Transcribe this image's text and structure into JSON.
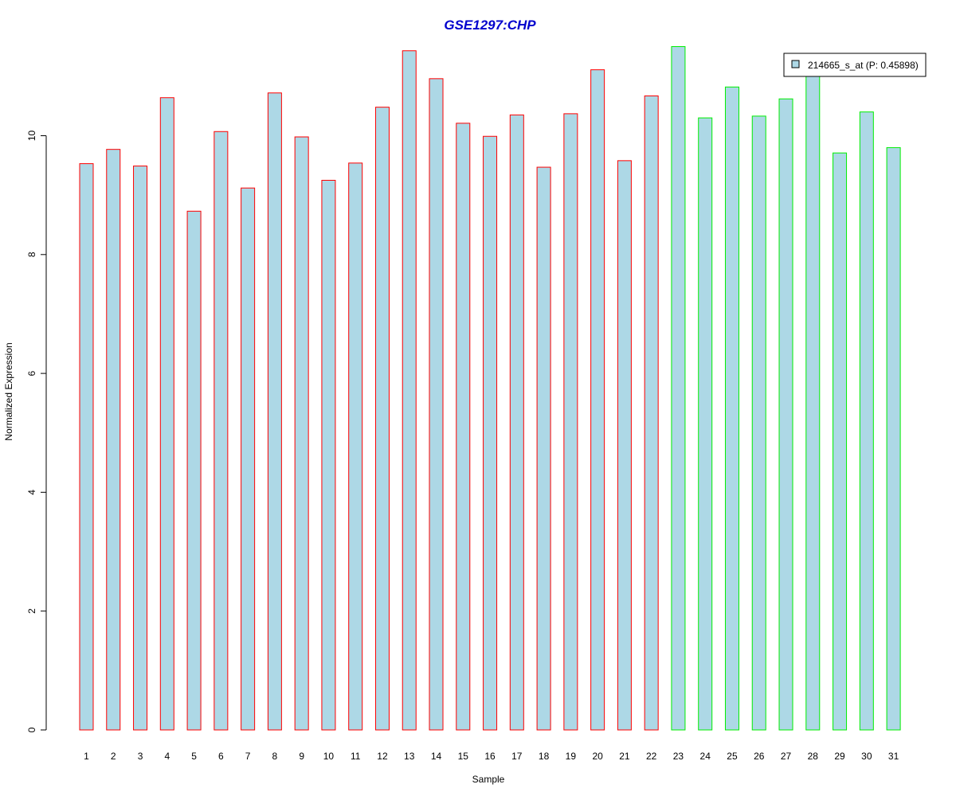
{
  "chart_data": {
    "type": "bar",
    "title": "GSE1297:CHP",
    "xlabel": "Sample",
    "ylabel": "Normalized Expression",
    "ylim": [
      0,
      11.6
    ],
    "yticks": [
      0,
      2,
      4,
      6,
      8,
      10
    ],
    "grid": false,
    "categories": [
      "1",
      "2",
      "3",
      "4",
      "5",
      "6",
      "7",
      "8",
      "9",
      "10",
      "11",
      "12",
      "13",
      "14",
      "15",
      "16",
      "17",
      "18",
      "19",
      "20",
      "21",
      "22",
      "23",
      "24",
      "25",
      "26",
      "27",
      "28",
      "29",
      "30",
      "31"
    ],
    "series": [
      {
        "name": "214665_s_at (P: 0.45898)",
        "values": [
          9.53,
          9.77,
          9.49,
          10.64,
          8.73,
          10.07,
          9.12,
          10.72,
          9.98,
          9.25,
          9.54,
          10.48,
          11.43,
          10.96,
          10.21,
          9.99,
          10.35,
          9.47,
          10.37,
          11.11,
          9.58,
          10.67,
          11.5,
          10.3,
          10.82,
          10.33,
          10.62,
          11.1,
          9.71,
          10.4,
          9.8
        ],
        "fill_color": "#ADD8E6",
        "border_colors": [
          "#FF0000",
          "#FF0000",
          "#FF0000",
          "#FF0000",
          "#FF0000",
          "#FF0000",
          "#FF0000",
          "#FF0000",
          "#FF0000",
          "#FF0000",
          "#FF0000",
          "#FF0000",
          "#FF0000",
          "#FF0000",
          "#FF0000",
          "#FF0000",
          "#FF0000",
          "#FF0000",
          "#FF0000",
          "#FF0000",
          "#FF0000",
          "#FF0000",
          "#00EE00",
          "#00EE00",
          "#00EE00",
          "#00EE00",
          "#00EE00",
          "#00EE00",
          "#00EE00",
          "#00EE00",
          "#00EE00"
        ]
      }
    ],
    "legend": {
      "placement": "top-right",
      "entries": [
        "214665_s_at (P: 0.45898)"
      ]
    },
    "title_color": "#0000CD"
  }
}
